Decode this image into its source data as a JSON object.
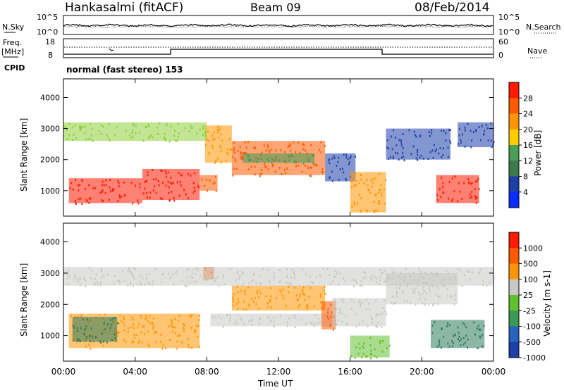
{
  "header": {
    "station": "Hankasalmi (fitACF)",
    "beam": "Beam 09",
    "date": "08/Feb/2014"
  },
  "left_labels": {
    "nsky": "N.Sky",
    "freq_line1": "Freq.",
    "freq_line2": "[MHz]",
    "cpid": "CPID"
  },
  "right_labels": {
    "nsearch": "N.Search",
    "nave": "Nave"
  },
  "noise_ticks": {
    "left_top": "10^5",
    "left_bottom": "10^0",
    "right_top": "10^5",
    "right_bottom": "10^0"
  },
  "freq_ticks": {
    "left_top": "18",
    "left_bottom": "8",
    "right_top": "60",
    "right_bottom": "0"
  },
  "cpid_text": "normal (fast stereo) 153",
  "x_ticks": [
    "00:00",
    "04:00",
    "08:00",
    "12:00",
    "16:00",
    "20:00",
    "00:00"
  ],
  "x_axis_label": "Time UT",
  "colors": {
    "red": "#ff1a00",
    "orange_red": "#ff5a00",
    "orange": "#ff9500",
    "yellow": "#ffcc00",
    "light_green": "#8fcf3c",
    "green": "#3a9a55",
    "teal": "#2e7a5c",
    "blue": "#1f3fa8",
    "deep_blue": "#0033cc",
    "grey": "#c8c8c4",
    "mid_blue": "#2a62c0",
    "lime": "#62c02e"
  },
  "chart_data": [
    {
      "type": "heatmap",
      "title": "",
      "xlabel": "",
      "ylabel": "Slant Range [km]",
      "xlim": [
        0,
        24
      ],
      "ylim": [
        180,
        4600
      ],
      "y_ticks": [
        "1000",
        "2000",
        "3000",
        "4000"
      ],
      "colorbar": {
        "label": "Power [dB]",
        "ticks": [
          "4",
          "8",
          "12",
          "16",
          "20",
          "24",
          "28"
        ],
        "colors": [
          "#0a2cff",
          "#1f3fa8",
          "#3c7a4e",
          "#4a9e55",
          "#ffcc00",
          "#ff9500",
          "#ff5a00",
          "#ff1a00"
        ]
      },
      "echo_regions": [
        {
          "t": [
            0.3,
            4.4
          ],
          "r": [
            600,
            1400
          ],
          "level": "red"
        },
        {
          "t": [
            4.4,
            7.6
          ],
          "r": [
            700,
            1700
          ],
          "level": "red"
        },
        {
          "t": [
            7.6,
            8.6
          ],
          "r": [
            1000,
            1500
          ],
          "level": "orange_red"
        },
        {
          "t": [
            7.9,
            9.4
          ],
          "r": [
            1900,
            3100
          ],
          "level": "orange"
        },
        {
          "t": [
            9.4,
            14.6
          ],
          "r": [
            1500,
            2600
          ],
          "level": "orange_red"
        },
        {
          "t": [
            10.0,
            14.0
          ],
          "r": [
            1900,
            2200
          ],
          "level": "green"
        },
        {
          "t": [
            14.6,
            16.3
          ],
          "r": [
            1300,
            2200
          ],
          "level": "blue"
        },
        {
          "t": [
            16.0,
            18.0
          ],
          "r": [
            300,
            1600
          ],
          "level": "orange"
        },
        {
          "t": [
            18.0,
            21.6
          ],
          "r": [
            2000,
            3000
          ],
          "level": "blue"
        },
        {
          "t": [
            20.8,
            23.2
          ],
          "r": [
            600,
            1500
          ],
          "level": "red"
        },
        {
          "t": [
            0.0,
            8.0
          ],
          "r": [
            2600,
            3200
          ],
          "level": "light_green"
        },
        {
          "t": [
            22.0,
            24.0
          ],
          "r": [
            2400,
            3200
          ],
          "level": "blue"
        }
      ]
    },
    {
      "type": "heatmap",
      "title": "",
      "xlabel": "Time UT",
      "ylabel": "Slant Range [km]",
      "xlim": [
        0,
        24
      ],
      "ylim": [
        180,
        4600
      ],
      "y_ticks": [
        "1000",
        "2000",
        "3000",
        "4000"
      ],
      "colorbar": {
        "label": "Velocity [m s-1]",
        "ticks": [
          "1000",
          "500",
          "100",
          "25",
          "-25",
          "-100",
          "-500",
          "-1000"
        ],
        "colors": [
          "#1f3fa8",
          "#2a62c0",
          "#3a9a55",
          "#62c02e",
          "#c8c8c4",
          "#ff9500",
          "#ff5a00",
          "#ff1a00"
        ]
      },
      "echo_regions": [
        {
          "t": [
            0.3,
            7.6
          ],
          "r": [
            600,
            1700
          ],
          "level": "orange"
        },
        {
          "t": [
            0.5,
            3.0
          ],
          "r": [
            800,
            1600
          ],
          "level": "teal"
        },
        {
          "t": [
            7.8,
            8.4
          ],
          "r": [
            2800,
            3200
          ],
          "level": "orange_red"
        },
        {
          "t": [
            8.2,
            15.2
          ],
          "r": [
            1300,
            1700
          ],
          "level": "grey"
        },
        {
          "t": [
            9.4,
            14.6
          ],
          "r": [
            1800,
            2600
          ],
          "level": "orange"
        },
        {
          "t": [
            14.4,
            15.2
          ],
          "r": [
            1200,
            2100
          ],
          "level": "orange_red"
        },
        {
          "t": [
            15.0,
            18.0
          ],
          "r": [
            1300,
            2200
          ],
          "level": "grey"
        },
        {
          "t": [
            16.0,
            18.2
          ],
          "r": [
            300,
            1000
          ],
          "level": "lime"
        },
        {
          "t": [
            18.0,
            22.0
          ],
          "r": [
            2000,
            3000
          ],
          "level": "grey"
        },
        {
          "t": [
            20.5,
            23.5
          ],
          "r": [
            600,
            1500
          ],
          "level": "teal"
        },
        {
          "t": [
            0.0,
            24.0
          ],
          "r": [
            2600,
            3200
          ],
          "level": "grey"
        }
      ]
    }
  ]
}
